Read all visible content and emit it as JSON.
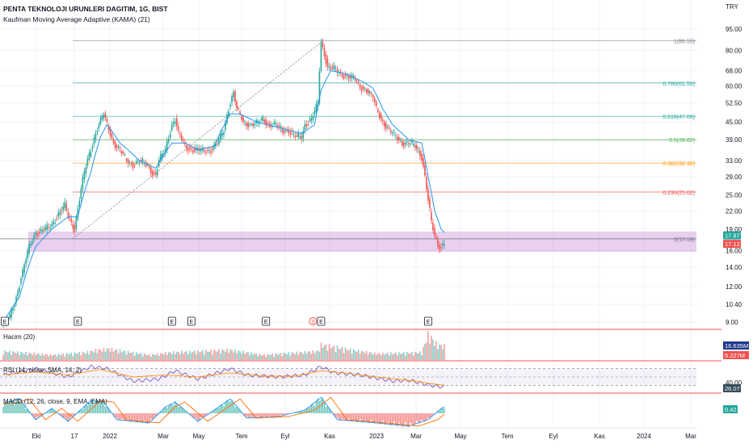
{
  "header": {
    "title": "PENTA TEKNOLOJI URUNLERI DAGITIM, 1G, BIST",
    "indicator": "Kaufman Moving Average Adaptive (KAMA) (21)",
    "currency": "TRY"
  },
  "colors": {
    "up": "#26a69a",
    "down": "#ef5350",
    "kama": "#2196f3",
    "grid": "#f0f3fa",
    "zone": "#9c27b0",
    "pane_border": "#ef5350"
  },
  "chart_data": {
    "type": "candlestick",
    "scale": "log",
    "ylim": [
      8.5,
      100
    ],
    "y_ticks": [
      "95.00",
      "80.00",
      "68.00",
      "60.00",
      "52.50",
      "45.00",
      "39.00",
      "33.00",
      "29.00",
      "25.00",
      "22.00",
      "19.00",
      "16.00",
      "14.00",
      "12.00",
      "10.40",
      "9.00"
    ],
    "x_ticks": [
      "Eki",
      "17",
      "2022",
      "Mar",
      "May",
      "Tem",
      "Eyl",
      "Kas",
      "2023",
      "Mar",
      "May",
      "Tem",
      "Eyl",
      "Kas",
      "2024",
      "Mar"
    ],
    "price_path": [
      [
        0,
        8.9
      ],
      [
        4,
        9.4
      ],
      [
        8,
        11
      ],
      [
        12,
        13.5
      ],
      [
        16,
        16.5
      ],
      [
        20,
        18.5
      ],
      [
        26,
        19
      ],
      [
        30,
        19.6
      ],
      [
        34,
        21.5
      ],
      [
        38,
        23
      ],
      [
        40,
        21
      ],
      [
        42,
        20
      ],
      [
        44,
        19
      ],
      [
        46,
        22.5
      ],
      [
        50,
        30
      ],
      [
        54,
        36
      ],
      [
        58,
        43
      ],
      [
        62,
        48
      ],
      [
        64,
        44
      ],
      [
        68,
        38
      ],
      [
        72,
        36
      ],
      [
        76,
        33
      ],
      [
        80,
        32
      ],
      [
        84,
        33
      ],
      [
        88,
        32
      ],
      [
        92,
        30
      ],
      [
        94,
        29.5
      ],
      [
        96,
        33
      ],
      [
        100,
        36
      ],
      [
        104,
        44
      ],
      [
        106,
        46
      ],
      [
        108,
        41
      ],
      [
        112,
        37
      ],
      [
        116,
        36
      ],
      [
        120,
        36
      ],
      [
        124,
        35.5
      ],
      [
        128,
        36
      ],
      [
        132,
        38
      ],
      [
        136,
        42
      ],
      [
        140,
        53
      ],
      [
        142,
        57
      ],
      [
        144,
        50
      ],
      [
        148,
        45
      ],
      [
        152,
        44
      ],
      [
        156,
        44.5
      ],
      [
        160,
        46
      ],
      [
        164,
        44
      ],
      [
        168,
        44
      ],
      [
        172,
        42
      ],
      [
        176,
        42
      ],
      [
        180,
        40
      ],
      [
        184,
        40
      ],
      [
        186,
        44
      ],
      [
        190,
        46
      ],
      [
        194,
        52
      ],
      [
        196,
        85
      ],
      [
        198,
        78
      ],
      [
        200,
        70
      ],
      [
        204,
        69
      ],
      [
        208,
        66
      ],
      [
        212,
        65
      ],
      [
        216,
        64
      ],
      [
        220,
        60
      ],
      [
        224,
        58
      ],
      [
        228,
        55
      ],
      [
        230,
        50
      ],
      [
        234,
        45
      ],
      [
        238,
        42
      ],
      [
        242,
        40
      ],
      [
        246,
        38
      ],
      [
        250,
        38
      ],
      [
        254,
        37
      ],
      [
        258,
        34
      ],
      [
        260,
        29
      ],
      [
        262,
        24
      ],
      [
        264,
        20
      ],
      [
        266,
        18
      ],
      [
        268,
        16.7
      ],
      [
        270,
        16.5
      ],
      [
        272,
        17.1
      ]
    ],
    "kama_path": [
      [
        0,
        9
      ],
      [
        10,
        11
      ],
      [
        20,
        16.5
      ],
      [
        30,
        19
      ],
      [
        40,
        21
      ],
      [
        46,
        21
      ],
      [
        54,
        30
      ],
      [
        60,
        40
      ],
      [
        64,
        44
      ],
      [
        72,
        38
      ],
      [
        84,
        33
      ],
      [
        94,
        31
      ],
      [
        104,
        38
      ],
      [
        112,
        38
      ],
      [
        120,
        36
      ],
      [
        130,
        37
      ],
      [
        140,
        48
      ],
      [
        146,
        48
      ],
      [
        156,
        45
      ],
      [
        170,
        43
      ],
      [
        184,
        41
      ],
      [
        192,
        44
      ],
      [
        196,
        58
      ],
      [
        202,
        68
      ],
      [
        212,
        66
      ],
      [
        222,
        62
      ],
      [
        228,
        59
      ],
      [
        234,
        50
      ],
      [
        240,
        44
      ],
      [
        250,
        39
      ],
      [
        258,
        38
      ],
      [
        262,
        29
      ],
      [
        266,
        22
      ],
      [
        270,
        19
      ],
      [
        272,
        18.5
      ]
    ],
    "volume_profile": [
      [
        0,
        0.35
      ],
      [
        30,
        0.2
      ],
      [
        50,
        0.3
      ],
      [
        64,
        0.45
      ],
      [
        90,
        0.2
      ],
      [
        104,
        0.3
      ],
      [
        140,
        0.4
      ],
      [
        160,
        0.2
      ],
      [
        194,
        0.35
      ],
      [
        196,
        0.6
      ],
      [
        230,
        0.25
      ],
      [
        258,
        0.3
      ],
      [
        262,
        1.0
      ],
      [
        264,
        0.9
      ],
      [
        266,
        0.7
      ],
      [
        268,
        0.6
      ],
      [
        272,
        0.55
      ]
    ],
    "rsi_path": [
      [
        0,
        55
      ],
      [
        20,
        70
      ],
      [
        40,
        50
      ],
      [
        54,
        75
      ],
      [
        64,
        70
      ],
      [
        80,
        40
      ],
      [
        96,
        45
      ],
      [
        106,
        65
      ],
      [
        120,
        45
      ],
      [
        140,
        70
      ],
      [
        150,
        55
      ],
      [
        170,
        50
      ],
      [
        186,
        55
      ],
      [
        196,
        75
      ],
      [
        204,
        60
      ],
      [
        220,
        55
      ],
      [
        240,
        40
      ],
      [
        250,
        42
      ],
      [
        258,
        35
      ],
      [
        266,
        28
      ],
      [
        272,
        26
      ]
    ],
    "rsi_sma_path": [
      [
        0,
        55
      ],
      [
        20,
        62
      ],
      [
        40,
        55
      ],
      [
        60,
        68
      ],
      [
        80,
        50
      ],
      [
        100,
        55
      ],
      [
        120,
        50
      ],
      [
        140,
        60
      ],
      [
        160,
        52
      ],
      [
        180,
        52
      ],
      [
        196,
        65
      ],
      [
        210,
        60
      ],
      [
        230,
        50
      ],
      [
        250,
        42
      ],
      [
        262,
        35
      ],
      [
        272,
        30
      ]
    ],
    "macd_hist_profile": [
      [
        0,
        0.6
      ],
      [
        10,
        0.9
      ],
      [
        20,
        -0.4
      ],
      [
        30,
        0.3
      ],
      [
        40,
        -0.5
      ],
      [
        54,
        0.8
      ],
      [
        62,
        0.7
      ],
      [
        70,
        -0.4
      ],
      [
        90,
        -0.6
      ],
      [
        100,
        0.4
      ],
      [
        106,
        0.7
      ],
      [
        120,
        -0.5
      ],
      [
        140,
        0.9
      ],
      [
        150,
        -0.3
      ],
      [
        170,
        -0.2
      ],
      [
        186,
        0.2
      ],
      [
        196,
        1.0
      ],
      [
        206,
        -0.4
      ],
      [
        230,
        -0.6
      ],
      [
        250,
        -0.8
      ],
      [
        262,
        -0.4
      ],
      [
        270,
        0.3
      ],
      [
        272,
        0.4
      ]
    ],
    "fib_levels": [
      {
        "label": "1(86.55)",
        "value": 86.55,
        "color": "#787b86"
      },
      {
        "label": "0.786(61.55)",
        "value": 61.55,
        "color": "#26a69a"
      },
      {
        "label": "0.618(47.08)",
        "value": 47.08,
        "color": "#26a69a"
      },
      {
        "label": "0.5(39.02)",
        "value": 39.02,
        "color": "#4caf50"
      },
      {
        "label": "0.382(32.32)",
        "value": 32.32,
        "color": "#ff9800"
      },
      {
        "label": "0.236(25.62)",
        "value": 25.62,
        "color": "#ef5350"
      },
      {
        "label": "0(17.59)",
        "value": 17.59,
        "color": "#787b86"
      }
    ],
    "zone": [
      15.85,
      18.65
    ],
    "price_badges": [
      {
        "text": "17.97",
        "value": 17.97,
        "color": "#26a69a"
      },
      {
        "text": "17.12",
        "value": 17.12,
        "color": "#ef5350"
      }
    ],
    "event_markers": [
      {
        "text": "E",
        "idx": 1
      },
      {
        "text": "E",
        "idx": 46
      },
      {
        "text": "E",
        "idx": 104
      },
      {
        "text": "E",
        "idx": 116
      },
      {
        "text": "E",
        "idx": 162
      },
      {
        "text": "S",
        "idx": 191
      },
      {
        "text": "E",
        "idx": 196
      },
      {
        "text": "E",
        "idx": 262
      }
    ]
  },
  "panes": {
    "volume": {
      "label": "Hacim (20)",
      "badge1": "16.635M",
      "badge2": "5.227M"
    },
    "rsi": {
      "label": "RSI (14, close, SMA, 14, 2)",
      "tick": "40.00",
      "badge": "26.07"
    },
    "macd": {
      "label": "MACD (12, 26, close, 9, EMA, EMA)",
      "badge": "0.42"
    }
  }
}
